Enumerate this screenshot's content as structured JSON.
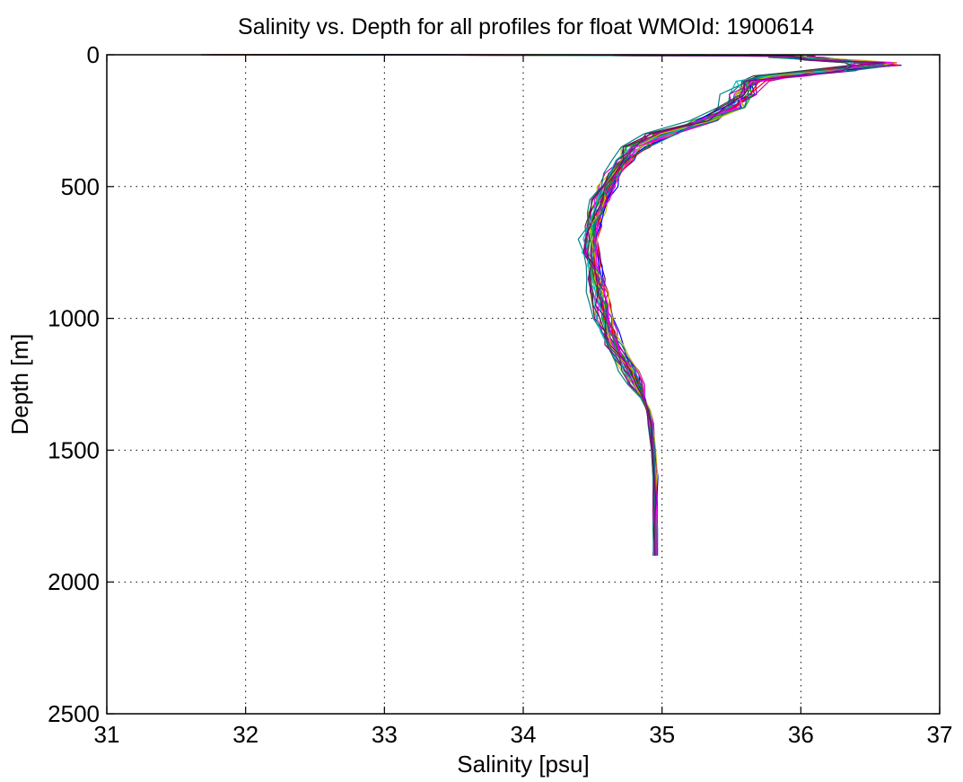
{
  "chart_data": {
    "type": "line",
    "title": "Salinity vs. Depth for all profiles for float WMOId: 1900614",
    "xlabel": "Salinity [psu]",
    "ylabel": "Depth [m]",
    "xlim": [
      31,
      37
    ],
    "ylim": [
      0,
      2500
    ],
    "y_reversed": true,
    "grid": true,
    "grid_style": "dotted",
    "x_ticks": [
      "31",
      "32",
      "33",
      "34",
      "35",
      "36",
      "37"
    ],
    "y_ticks": [
      "0",
      "500",
      "1000",
      "1500",
      "2000",
      "2500"
    ],
    "series_count": 30,
    "series_colors": [
      "#0000ff",
      "#00aa00",
      "#ff0000",
      "#00bfbf",
      "#bf00bf",
      "#bfbf00",
      "#404040",
      "#ff00ff",
      "#008080",
      "#800080"
    ],
    "mean_profile": {
      "depth": [
        0,
        5,
        10,
        20,
        30,
        40,
        60,
        80,
        100,
        150,
        200,
        250,
        300,
        350,
        400,
        450,
        500,
        550,
        600,
        650,
        700,
        750,
        800,
        850,
        900,
        950,
        1000,
        1050,
        1100,
        1150,
        1200,
        1250,
        1300,
        1350,
        1400,
        1500,
        1600,
        1700,
        1800,
        1900,
        2000
      ],
      "salinity": [
        35.9,
        35.9,
        35.95,
        36.2,
        36.5,
        36.55,
        36.2,
        35.85,
        35.65,
        35.55,
        35.5,
        35.3,
        35.0,
        34.82,
        34.72,
        34.65,
        34.6,
        34.56,
        34.52,
        34.5,
        34.48,
        34.48,
        34.5,
        34.52,
        34.54,
        34.56,
        34.58,
        34.61,
        34.65,
        34.7,
        34.76,
        34.81,
        34.86,
        34.9,
        34.92,
        34.94,
        34.95,
        34.95,
        34.95,
        34.95,
        34.95
      ]
    }
  }
}
